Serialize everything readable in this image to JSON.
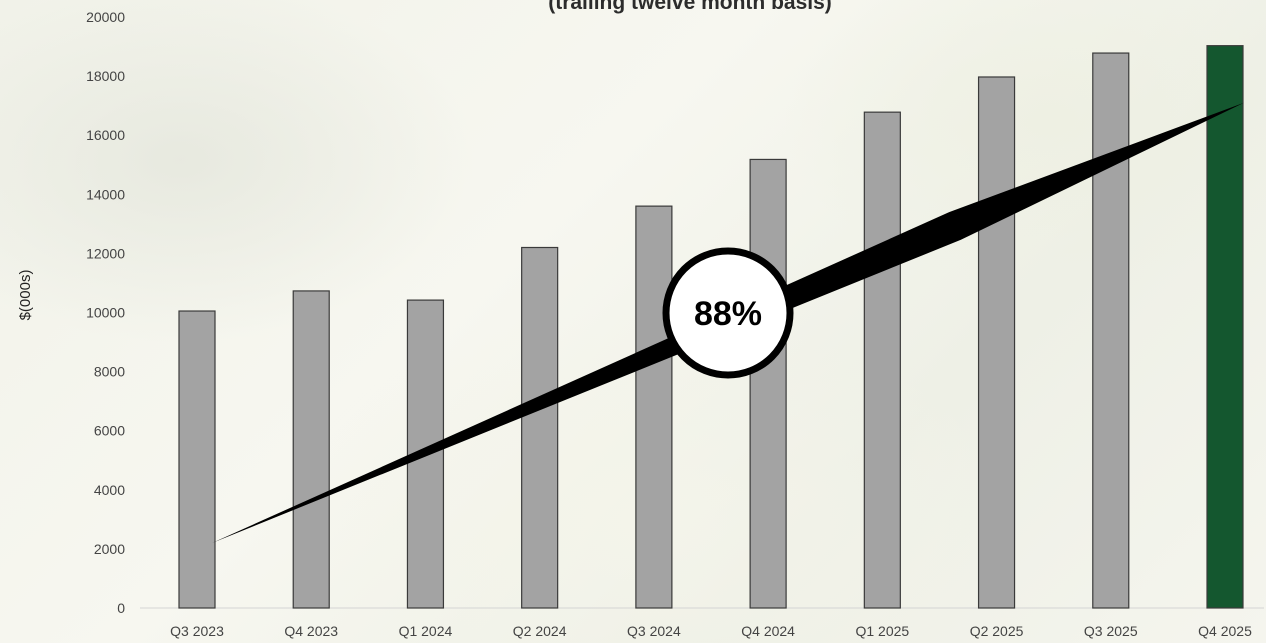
{
  "chart_data": {
    "type": "bar",
    "title": "(trailing twelve month basis)",
    "xlabel": "",
    "ylabel": "$(000s)",
    "ylim": [
      0,
      20000
    ],
    "yticks": [
      0,
      2000,
      4000,
      6000,
      8000,
      10000,
      12000,
      14000,
      16000,
      18000,
      20000
    ],
    "categories": [
      "Q3 2023",
      "Q4 2023",
      "Q1 2024",
      "Q2 2024",
      "Q3 2024",
      "Q4 2024",
      "Q1 2025",
      "Q2 2025",
      "Q3 2025",
      "Q4 2025"
    ],
    "values": [
      10050,
      10730,
      10420,
      12200,
      13600,
      15180,
      16780,
      17970,
      18780,
      19030
    ],
    "highlight_index": 9,
    "bar_color": "#a3a3a3",
    "highlight_color": "#14572f",
    "grid": false,
    "annotation": {
      "label": "88%",
      "trend_start": 2200,
      "trend_end": 17100
    }
  }
}
